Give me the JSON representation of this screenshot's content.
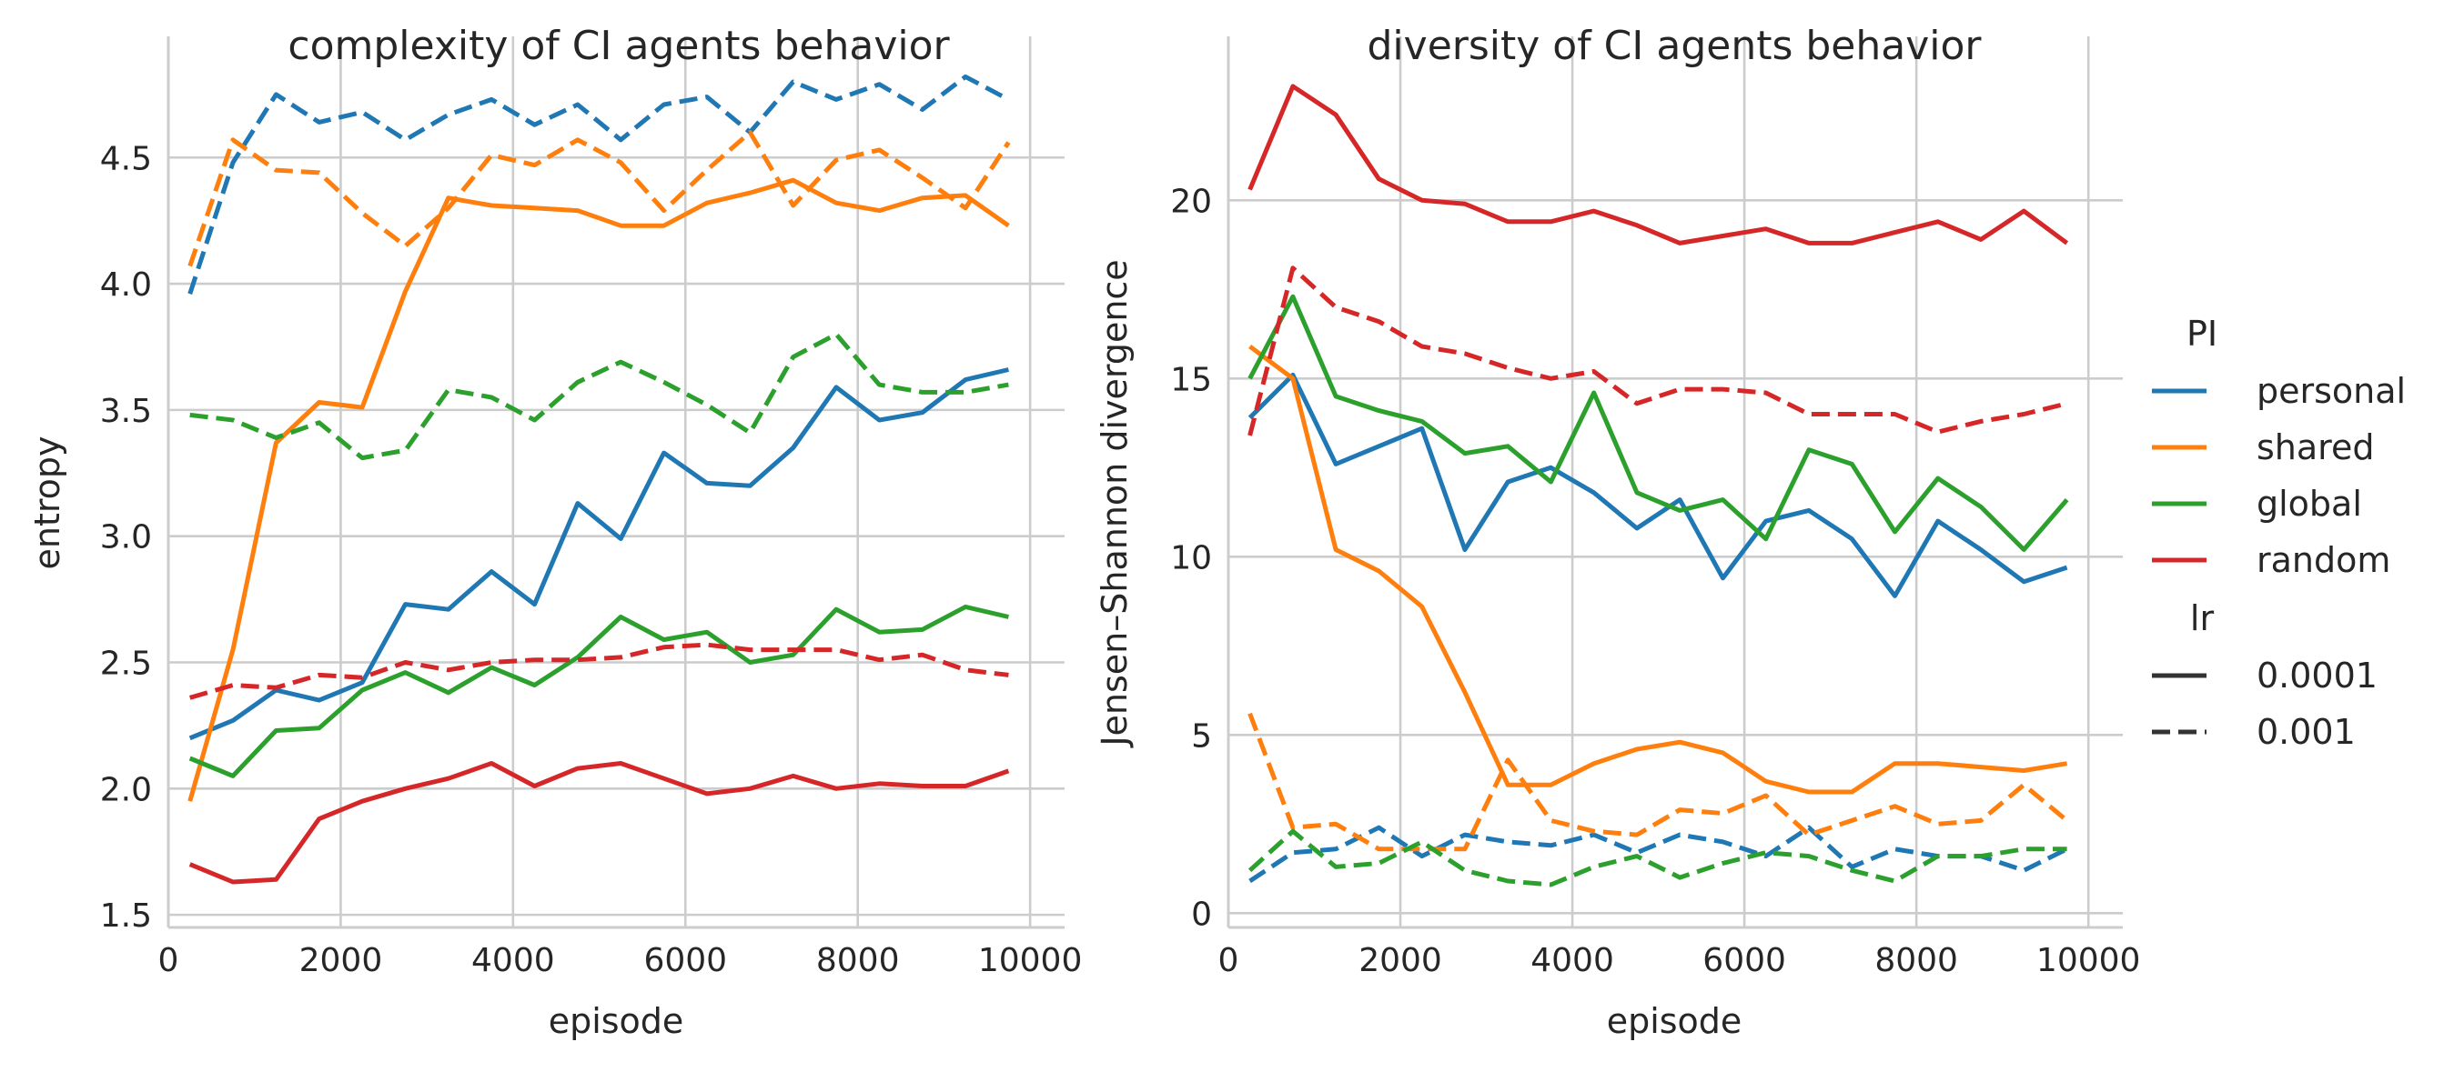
{
  "colors": {
    "personal": "#1f77b4",
    "shared": "#ff7f0e",
    "global": "#2ca02c",
    "random": "#d62728"
  },
  "legend": {
    "hue_title": "PI",
    "hue_items": [
      "personal",
      "shared",
      "global",
      "random"
    ],
    "style_title": "lr",
    "style_items": [
      {
        "label": "0.0001",
        "dash": "solid"
      },
      {
        "label": "0.001",
        "dash": "dashed"
      }
    ],
    "placement": "center-right outside"
  },
  "chart_data": [
    {
      "type": "line",
      "title": "complexity of CI agents behavior",
      "xlabel": "episode",
      "ylabel": "entropy",
      "xlim": [
        0,
        10400
      ],
      "ylim": [
        1.45,
        4.98
      ],
      "xticks": [
        0,
        2000,
        4000,
        6000,
        8000,
        10000
      ],
      "xtick_labels": [
        "0",
        "2000",
        "4000",
        "6000",
        "8000",
        "10000"
      ],
      "yticks": [
        1.5,
        2.0,
        2.5,
        3.0,
        3.5,
        4.0,
        4.5
      ],
      "ytick_labels": [
        "1.5",
        "2.0",
        "2.5",
        "3.0",
        "3.5",
        "4.0",
        "4.5"
      ],
      "grid": true,
      "x": [
        250,
        750,
        1250,
        1750,
        2250,
        2750,
        3250,
        3750,
        4250,
        4750,
        5250,
        5750,
        6250,
        6750,
        7250,
        7750,
        8250,
        8750,
        9250,
        9750
      ],
      "series": [
        {
          "name": "personal",
          "lr": "0.0001",
          "values": [
            2.2,
            2.27,
            2.39,
            2.35,
            2.42,
            2.73,
            2.71,
            2.86,
            2.73,
            3.13,
            2.99,
            3.33,
            3.21,
            3.2,
            3.35,
            3.59,
            3.46,
            3.49,
            3.62,
            3.66
          ]
        },
        {
          "name": "shared",
          "lr": "0.0001",
          "values": [
            1.95,
            2.55,
            3.37,
            3.53,
            3.51,
            3.97,
            4.34,
            4.31,
            4.3,
            4.29,
            4.23,
            4.23,
            4.32,
            4.36,
            4.41,
            4.32,
            4.29,
            4.34,
            4.35,
            4.23
          ]
        },
        {
          "name": "global",
          "lr": "0.0001",
          "values": [
            2.12,
            2.05,
            2.23,
            2.24,
            2.39,
            2.46,
            2.38,
            2.48,
            2.41,
            2.52,
            2.68,
            2.59,
            2.62,
            2.5,
            2.53,
            2.71,
            2.62,
            2.63,
            2.72,
            2.68
          ]
        },
        {
          "name": "random",
          "lr": "0.0001",
          "values": [
            1.7,
            1.63,
            1.64,
            1.88,
            1.95,
            2.0,
            2.04,
            2.1,
            2.01,
            2.08,
            2.1,
            2.04,
            1.98,
            2.0,
            2.05,
            2.0,
            2.02,
            2.01,
            2.01,
            2.07
          ]
        },
        {
          "name": "personal",
          "lr": "0.001",
          "values": [
            3.96,
            4.48,
            4.75,
            4.64,
            4.68,
            4.57,
            4.67,
            4.73,
            4.63,
            4.71,
            4.57,
            4.71,
            4.74,
            4.6,
            4.8,
            4.73,
            4.79,
            4.69,
            4.82,
            4.73
          ]
        },
        {
          "name": "shared",
          "lr": "0.001",
          "values": [
            4.07,
            4.57,
            4.45,
            4.44,
            4.28,
            4.15,
            4.3,
            4.51,
            4.47,
            4.57,
            4.48,
            4.29,
            4.45,
            4.6,
            4.31,
            4.49,
            4.53,
            4.42,
            4.3,
            4.56
          ]
        },
        {
          "name": "global",
          "lr": "0.001",
          "values": [
            3.48,
            3.46,
            3.39,
            3.45,
            3.31,
            3.34,
            3.58,
            3.55,
            3.46,
            3.61,
            3.69,
            3.61,
            3.52,
            3.41,
            3.71,
            3.8,
            3.6,
            3.57,
            3.57,
            3.6
          ]
        },
        {
          "name": "random",
          "lr": "0.001",
          "values": [
            2.36,
            2.41,
            2.4,
            2.45,
            2.44,
            2.5,
            2.47,
            2.5,
            2.51,
            2.51,
            2.52,
            2.56,
            2.57,
            2.55,
            2.55,
            2.55,
            2.51,
            2.53,
            2.47,
            2.45
          ]
        }
      ]
    },
    {
      "type": "line",
      "title": "diversity of CI agents behavior",
      "xlabel": "episode",
      "ylabel": "Jensen–Shannon divergence",
      "xlim": [
        0,
        10400
      ],
      "ylim": [
        -0.4,
        24.6
      ],
      "xticks": [
        0,
        2000,
        4000,
        6000,
        8000,
        10000
      ],
      "xtick_labels": [
        "0",
        "2000",
        "4000",
        "6000",
        "8000",
        "10000"
      ],
      "yticks": [
        0,
        5,
        10,
        15,
        20
      ],
      "ytick_labels": [
        "0",
        "5",
        "10",
        "15",
        "20"
      ],
      "grid": true,
      "x": [
        250,
        750,
        1250,
        1750,
        2250,
        2750,
        3250,
        3750,
        4250,
        4750,
        5250,
        5750,
        6250,
        6750,
        7250,
        7750,
        8250,
        8750,
        9250,
        9750
      ],
      "series": [
        {
          "name": "personal",
          "lr": "0.0001",
          "values": [
            13.9,
            15.1,
            12.6,
            13.1,
            13.6,
            10.2,
            12.1,
            12.5,
            11.8,
            10.8,
            11.6,
            9.4,
            11.0,
            11.3,
            10.5,
            8.9,
            11.0,
            10.2,
            9.3,
            9.7
          ]
        },
        {
          "name": "shared",
          "lr": "0.0001",
          "values": [
            15.9,
            15.0,
            10.2,
            9.6,
            8.6,
            6.2,
            3.6,
            3.6,
            4.2,
            4.6,
            4.8,
            4.5,
            3.7,
            3.4,
            3.4,
            4.2,
            4.2,
            4.1,
            4.0,
            4.2
          ]
        },
        {
          "name": "global",
          "lr": "0.0001",
          "values": [
            15.0,
            17.3,
            14.5,
            14.1,
            13.8,
            12.9,
            13.1,
            12.1,
            14.6,
            11.8,
            11.3,
            11.6,
            10.5,
            13.0,
            12.6,
            10.7,
            12.2,
            11.4,
            10.2,
            11.6
          ]
        },
        {
          "name": "random",
          "lr": "0.0001",
          "values": [
            20.3,
            23.2,
            22.4,
            20.6,
            20.0,
            19.9,
            19.4,
            19.4,
            19.7,
            19.3,
            18.8,
            19.0,
            19.2,
            18.8,
            18.8,
            19.1,
            19.4,
            18.9,
            19.7,
            18.8
          ]
        },
        {
          "name": "personal",
          "lr": "0.001",
          "values": [
            0.9,
            1.7,
            1.8,
            2.4,
            1.6,
            2.2,
            2.0,
            1.9,
            2.2,
            1.7,
            2.2,
            2.0,
            1.6,
            2.4,
            1.3,
            1.8,
            1.6,
            1.6,
            1.2,
            1.8
          ]
        },
        {
          "name": "shared",
          "lr": "0.001",
          "values": [
            5.6,
            2.4,
            2.5,
            1.8,
            1.8,
            1.8,
            4.3,
            2.6,
            2.3,
            2.2,
            2.9,
            2.8,
            3.3,
            2.2,
            2.6,
            3.0,
            2.5,
            2.6,
            3.6,
            2.6
          ]
        },
        {
          "name": "global",
          "lr": "0.001",
          "values": [
            1.2,
            2.3,
            1.3,
            1.4,
            2.0,
            1.2,
            0.9,
            0.8,
            1.3,
            1.6,
            1.0,
            1.4,
            1.7,
            1.6,
            1.2,
            0.9,
            1.6,
            1.6,
            1.8,
            1.8
          ]
        },
        {
          "name": "random",
          "lr": "0.001",
          "values": [
            13.4,
            18.1,
            17.0,
            16.6,
            15.9,
            15.7,
            15.3,
            15.0,
            15.2,
            14.3,
            14.7,
            14.7,
            14.6,
            14.0,
            14.0,
            14.0,
            13.5,
            13.8,
            14.0,
            14.3
          ]
        }
      ]
    }
  ]
}
